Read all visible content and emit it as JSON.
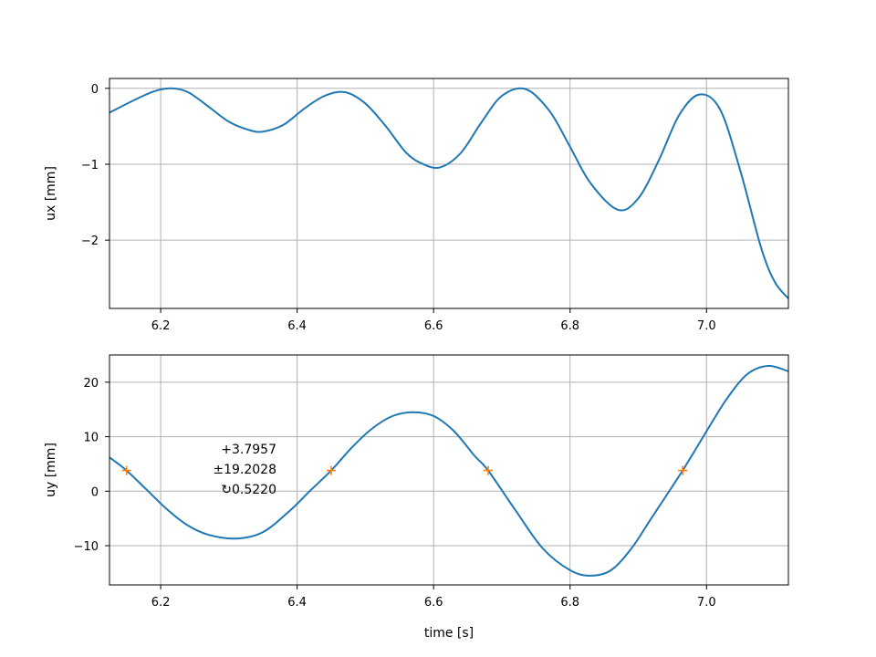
{
  "chart_data": [
    {
      "type": "line",
      "ylabel": "ux [mm]",
      "xlabel": "",
      "xlim": [
        6.125,
        7.12
      ],
      "ylim": [
        -2.9,
        0.13
      ],
      "x_ticks": [
        6.2,
        6.4,
        6.6,
        6.8,
        7.0
      ],
      "x_tick_labels": [
        "6.2",
        "6.4",
        "6.6",
        "6.8",
        "7.0"
      ],
      "y_ticks": [
        0,
        -1,
        -2
      ],
      "y_tick_labels": [
        "0",
        "−1",
        "−2"
      ],
      "grid": true,
      "line_color": "#1f77b4",
      "series": [
        {
          "x": [
            6.125,
            6.16,
            6.19,
            6.215,
            6.24,
            6.27,
            6.3,
            6.33,
            6.35,
            6.38,
            6.41,
            6.44,
            6.47,
            6.5,
            6.53,
            6.56,
            6.585,
            6.61,
            6.64,
            6.67,
            6.7,
            6.735,
            6.77,
            6.8,
            6.83,
            6.87,
            6.9,
            6.93,
            6.96,
            6.99,
            7.02,
            7.05,
            7.08,
            7.1,
            7.12
          ],
          "values": [
            -0.32,
            -0.16,
            -0.04,
            0.0,
            -0.05,
            -0.24,
            -0.44,
            -0.55,
            -0.57,
            -0.48,
            -0.27,
            -0.1,
            -0.05,
            -0.2,
            -0.5,
            -0.85,
            -1.0,
            -1.04,
            -0.85,
            -0.45,
            -0.1,
            -0.01,
            -0.3,
            -0.77,
            -1.25,
            -1.6,
            -1.45,
            -0.95,
            -0.35,
            -0.08,
            -0.28,
            -1.1,
            -2.1,
            -2.55,
            -2.77
          ]
        }
      ]
    },
    {
      "type": "line",
      "ylabel": "uy [mm]",
      "xlabel": "time [s]",
      "xlim": [
        6.125,
        7.12
      ],
      "ylim": [
        -17.2,
        25
      ],
      "x_ticks": [
        6.2,
        6.4,
        6.6,
        6.8,
        7.0
      ],
      "x_tick_labels": [
        "6.2",
        "6.4",
        "6.6",
        "6.8",
        "7.0"
      ],
      "y_ticks": [
        20,
        10,
        0,
        -10
      ],
      "y_tick_labels": [
        "20",
        "10",
        "0",
        "−10"
      ],
      "grid": true,
      "line_color": "#1f77b4",
      "marker_color": "#ff7f0e",
      "series": [
        {
          "x": [
            6.125,
            6.15,
            6.18,
            6.21,
            6.24,
            6.27,
            6.31,
            6.35,
            6.39,
            6.42,
            6.45,
            6.48,
            6.51,
            6.54,
            6.57,
            6.6,
            6.63,
            6.66,
            6.68,
            6.72,
            6.76,
            6.8,
            6.83,
            6.86,
            6.89,
            6.92,
            6.965,
            7.0,
            7.03,
            7.06,
            7.09,
            7.12
          ],
          "values": [
            6.2,
            3.8,
            0.2,
            -3.4,
            -6.3,
            -8.0,
            -8.7,
            -7.5,
            -3.5,
            0.2,
            3.8,
            8.0,
            11.5,
            13.8,
            14.5,
            13.8,
            11.0,
            6.5,
            3.8,
            -3.5,
            -10.5,
            -14.5,
            -15.5,
            -14.5,
            -10.5,
            -4.8,
            3.8,
            11.0,
            17.0,
            21.5,
            23.0,
            22.0
          ]
        }
      ],
      "markers": {
        "x": [
          6.15,
          6.45,
          6.68,
          6.965
        ],
        "values": [
          3.8,
          3.8,
          3.8,
          3.8
        ]
      },
      "annotation": {
        "lines": [
          "+3.7957",
          "±19.2028",
          "↻0.5220"
        ]
      }
    }
  ]
}
